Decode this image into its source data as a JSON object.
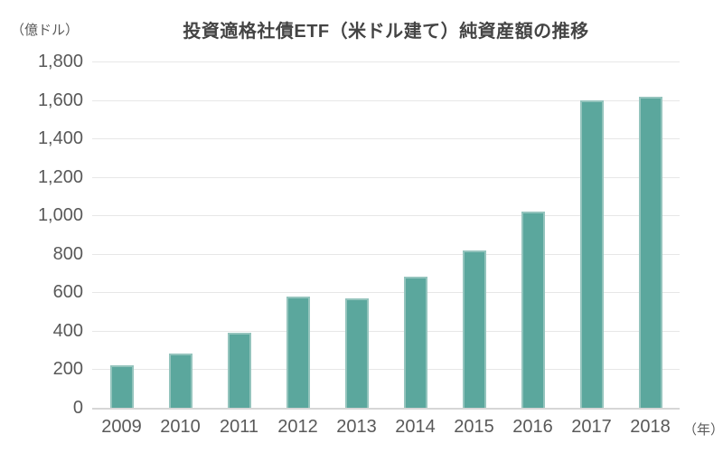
{
  "title": "投資適格社債ETF（米ドル建て）純資産額の推移",
  "y_axis": {
    "unit_label": "（億ドル）",
    "tick_labels": [
      "0",
      "200",
      "400",
      "600",
      "800",
      "1,000",
      "1,200",
      "1,400",
      "1,600",
      "1,800"
    ]
  },
  "x_axis": {
    "unit_label": "（年）"
  },
  "colors": {
    "background": "#FFFFFF",
    "bar_fill": "#5BA79D",
    "bar_edge": "#94C4BD",
    "gridline": "#E7E7E7",
    "axis_line": "#D6D6D6",
    "tick_text": "#595959",
    "title_text": "#444444"
  },
  "chart_data": {
    "type": "bar",
    "title": "投資適格社債ETF（米ドル建て）純資産額の推移",
    "categories": [
      "2009",
      "2010",
      "2011",
      "2012",
      "2013",
      "2014",
      "2015",
      "2016",
      "2017",
      "2018"
    ],
    "values": [
      220,
      280,
      390,
      580,
      570,
      680,
      820,
      1020,
      1600,
      1615
    ],
    "xlabel": "（年）",
    "ylabel": "（億ドル）",
    "ylim": [
      0,
      1800
    ],
    "ytick_step": 200,
    "grid": true,
    "legend": false,
    "bar_color": "#5BA79D"
  }
}
